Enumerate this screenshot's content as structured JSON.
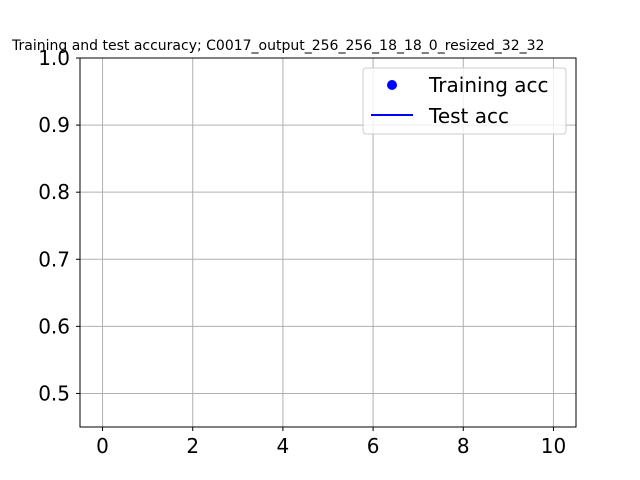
{
  "chart_data": {
    "type": "line",
    "title": "Training and test accuracy; C0017_output_256_256_18_18_0_resized_32_32",
    "xlabel": "",
    "ylabel": "",
    "xlim": [
      -0.5,
      10.5
    ],
    "ylim": [
      0.45,
      1.0
    ],
    "xticks": [
      0,
      2,
      4,
      6,
      8,
      10
    ],
    "xtick_labels": [
      "0",
      "2",
      "4",
      "6",
      "8",
      "10"
    ],
    "yticks": [
      0.5,
      0.6,
      0.7,
      0.8,
      0.9,
      1.0
    ],
    "ytick_labels": [
      "0.5",
      "0.6",
      "0.7",
      "0.8",
      "0.9",
      "1.0"
    ],
    "grid": true,
    "legend_position": "top-right",
    "series": [
      {
        "name": "Training acc",
        "style": "markers",
        "color": "#0000ff",
        "x": [],
        "y": []
      },
      {
        "name": "Test acc",
        "style": "line",
        "color": "#0000ff",
        "x": [],
        "y": []
      }
    ]
  }
}
